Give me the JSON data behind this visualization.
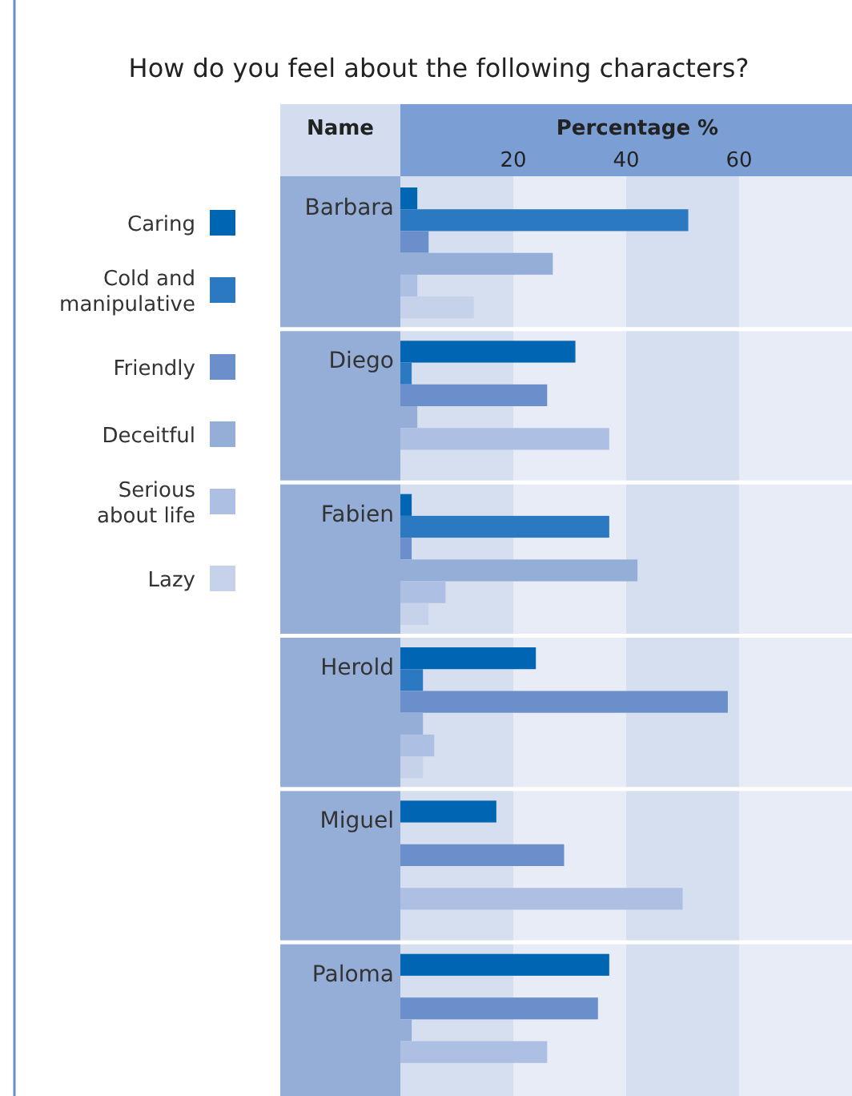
{
  "chart_data": {
    "type": "bar",
    "orientation": "horizontal",
    "title": "How do you feel about the following characters?",
    "xlabel": "Percentage %",
    "ylabel": "Name",
    "categories": [
      "Barbara",
      "Diego",
      "Fabien",
      "Herold",
      "Miguel",
      "Paloma"
    ],
    "series": [
      {
        "name": "Caring",
        "color": "#0066b3",
        "values": [
          3,
          31,
          2,
          24,
          17,
          37
        ]
      },
      {
        "name": "Cold and manipulative",
        "color": "#2b79c0",
        "values": [
          51,
          2,
          37,
          4,
          null,
          null
        ]
      },
      {
        "name": "Friendly",
        "color": "#6a8fca",
        "values": [
          5,
          26,
          2,
          58,
          29,
          35
        ]
      },
      {
        "name": "Deceitful",
        "color": "#95aed8",
        "values": [
          27,
          3,
          42,
          4,
          null,
          2
        ]
      },
      {
        "name": "Serious about life",
        "color": "#adc0e3",
        "values": [
          3,
          37,
          8,
          6,
          50,
          26
        ]
      },
      {
        "name": "Lazy",
        "color": "#c5d2ea",
        "values": [
          13,
          null,
          5,
          4,
          null,
          null
        ]
      }
    ],
    "bands": [
      {
        "axis": "x",
        "from": 0,
        "to": 20,
        "color": "#d6dff0"
      },
      {
        "axis": "x",
        "from": 40,
        "to": 60,
        "color": "#d6dff0"
      }
    ],
    "xlim": [
      0,
      80
    ],
    "xticks": [
      20,
      40,
      60
    ],
    "legend": "left"
  }
}
